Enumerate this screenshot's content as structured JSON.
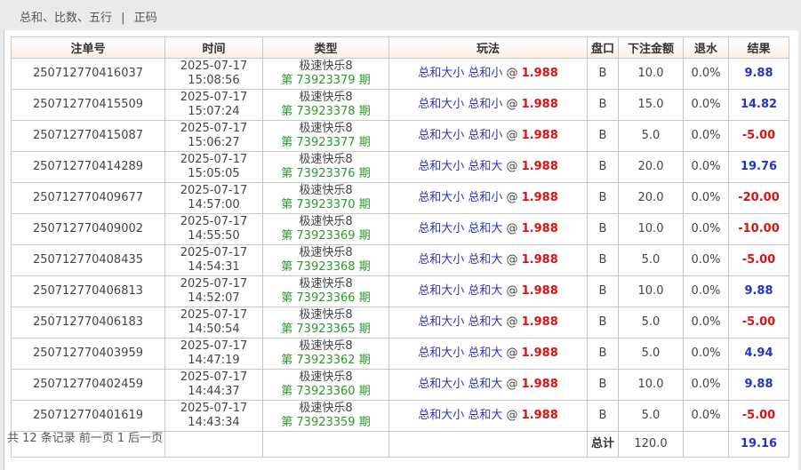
{
  "nav": {
    "items": [
      "总和、比数、五行",
      "正码"
    ],
    "separator": "|"
  },
  "table": {
    "headers": [
      "注单号",
      "时间",
      "类型",
      "玩法",
      "盘口",
      "下注金额",
      "退水",
      "结果"
    ],
    "rows": [
      {
        "id": "250712770416037",
        "date": "2025-07-17",
        "time": "15:08:56",
        "game": "极速快乐8",
        "issue": "第 73923379 期",
        "play": "总和大小 总和小",
        "at": "@",
        "odds": "1.988",
        "pan": "B",
        "amount": "10.0",
        "rebate": "0.0%",
        "result": "9.88",
        "sign": "pos"
      },
      {
        "id": "250712770415509",
        "date": "2025-07-17",
        "time": "15:07:24",
        "game": "极速快乐8",
        "issue": "第 73923378 期",
        "play": "总和大小 总和小",
        "at": "@",
        "odds": "1.988",
        "pan": "B",
        "amount": "15.0",
        "rebate": "0.0%",
        "result": "14.82",
        "sign": "pos"
      },
      {
        "id": "250712770415087",
        "date": "2025-07-17",
        "time": "15:06:27",
        "game": "极速快乐8",
        "issue": "第 73923377 期",
        "play": "总和大小 总和小",
        "at": "@",
        "odds": "1.988",
        "pan": "B",
        "amount": "5.0",
        "rebate": "0.0%",
        "result": "-5.00",
        "sign": "neg"
      },
      {
        "id": "250712770414289",
        "date": "2025-07-17",
        "time": "15:05:05",
        "game": "极速快乐8",
        "issue": "第 73923376 期",
        "play": "总和大小 总和大",
        "at": "@",
        "odds": "1.988",
        "pan": "B",
        "amount": "20.0",
        "rebate": "0.0%",
        "result": "19.76",
        "sign": "pos"
      },
      {
        "id": "250712770409677",
        "date": "2025-07-17",
        "time": "14:57:00",
        "game": "极速快乐8",
        "issue": "第 73923370 期",
        "play": "总和大小 总和小",
        "at": "@",
        "odds": "1.988",
        "pan": "B",
        "amount": "20.0",
        "rebate": "0.0%",
        "result": "-20.00",
        "sign": "neg"
      },
      {
        "id": "250712770409002",
        "date": "2025-07-17",
        "time": "14:55:50",
        "game": "极速快乐8",
        "issue": "第 73923369 期",
        "play": "总和大小 总和大",
        "at": "@",
        "odds": "1.988",
        "pan": "B",
        "amount": "10.0",
        "rebate": "0.0%",
        "result": "-10.00",
        "sign": "neg"
      },
      {
        "id": "250712770408435",
        "date": "2025-07-17",
        "time": "14:54:31",
        "game": "极速快乐8",
        "issue": "第 73923368 期",
        "play": "总和大小 总和大",
        "at": "@",
        "odds": "1.988",
        "pan": "B",
        "amount": "5.0",
        "rebate": "0.0%",
        "result": "-5.00",
        "sign": "neg"
      },
      {
        "id": "250712770406813",
        "date": "2025-07-17",
        "time": "14:52:07",
        "game": "极速快乐8",
        "issue": "第 73923366 期",
        "play": "总和大小 总和大",
        "at": "@",
        "odds": "1.988",
        "pan": "B",
        "amount": "10.0",
        "rebate": "0.0%",
        "result": "9.88",
        "sign": "pos"
      },
      {
        "id": "250712770406183",
        "date": "2025-07-17",
        "time": "14:50:54",
        "game": "极速快乐8",
        "issue": "第 73923365 期",
        "play": "总和大小 总和大",
        "at": "@",
        "odds": "1.988",
        "pan": "B",
        "amount": "5.0",
        "rebate": "0.0%",
        "result": "-5.00",
        "sign": "neg"
      },
      {
        "id": "250712770403959",
        "date": "2025-07-17",
        "time": "14:47:19",
        "game": "极速快乐8",
        "issue": "第 73923362 期",
        "play": "总和大小 总和大",
        "at": "@",
        "odds": "1.988",
        "pan": "B",
        "amount": "5.0",
        "rebate": "0.0%",
        "result": "4.94",
        "sign": "pos"
      },
      {
        "id": "250712770402459",
        "date": "2025-07-17",
        "time": "14:44:37",
        "game": "极速快乐8",
        "issue": "第 73923360 期",
        "play": "总和大小 总和大",
        "at": "@",
        "odds": "1.988",
        "pan": "B",
        "amount": "10.0",
        "rebate": "0.0%",
        "result": "9.88",
        "sign": "pos"
      },
      {
        "id": "250712770401619",
        "date": "2025-07-17",
        "time": "14:43:34",
        "game": "极速快乐8",
        "issue": "第 73923359 期",
        "play": "总和大小 总和大",
        "at": "@",
        "odds": "1.988",
        "pan": "B",
        "amount": "5.0",
        "rebate": "0.0%",
        "result": "-5.00",
        "sign": "neg"
      }
    ],
    "total": {
      "label": "总计",
      "amount": "120.0",
      "result": "19.16"
    }
  },
  "footer": {
    "records": "共 12 条记录",
    "prev": "前一页",
    "page": "1",
    "next": "后一页"
  },
  "colors": {
    "positive": "#2233cc",
    "negative": "#e01010",
    "issue": "#2a9a2a",
    "play": "#3333bb"
  }
}
